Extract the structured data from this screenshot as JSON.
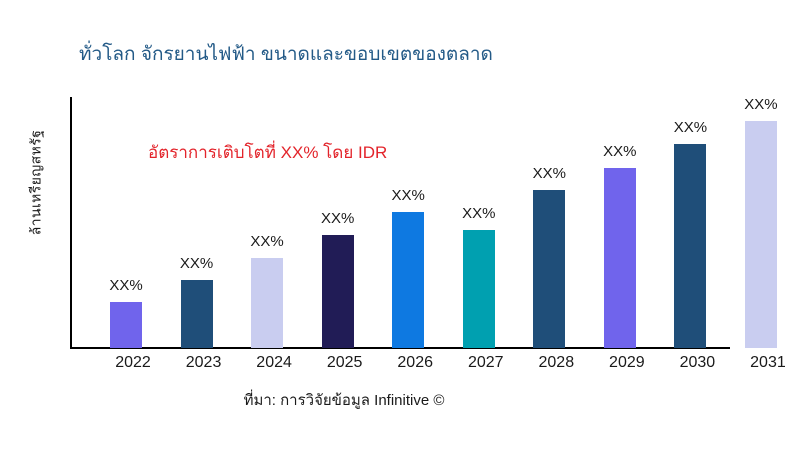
{
  "header": {
    "title": "ทั่วโลก จักรยานไฟฟ้า ขนาดและขอบเขตของตลาด",
    "title_color": "#235a87"
  },
  "annotation": {
    "text": "อัตราการเติบโตที่ XX% โดย IDR",
    "color": "#e3242b"
  },
  "footer": {
    "source": "ที่มา: การวิจัยข้อมูล Infinitive ©"
  },
  "chart_data": {
    "type": "bar",
    "title": "ทั่วโลก จักรยานไฟฟ้า ขนาดและขอบเขตของตลาด",
    "xlabel": "",
    "ylabel": "ล้านเหรียญสหรัฐ",
    "categories": [
      "2022",
      "2023",
      "2024",
      "2025",
      "2026",
      "2027",
      "2028",
      "2029",
      "2030",
      "2031"
    ],
    "bar_labels": [
      "XX%",
      "XX%",
      "XX%",
      "XX%",
      "XX%",
      "XX%",
      "XX%",
      "XX%",
      "XX%",
      "XX%"
    ],
    "values_relative_height": [
      46,
      68,
      90,
      113,
      136,
      118,
      158,
      180,
      204,
      227
    ],
    "values_note": "numeric values are masked as XX% in the image; heights are relative estimates",
    "bar_colors": [
      "#7064ec",
      "#1f4e79",
      "#c9cdf0",
      "#211c56",
      "#0e79e1",
      "#00a0b0",
      "#1f4e79",
      "#7064ec",
      "#1f4e79",
      "#c9cdf0"
    ],
    "axis_color": "#000000",
    "grid": false,
    "legend": false,
    "annotation": "อัตราการเติบโตที่ XX% โดย IDR"
  }
}
